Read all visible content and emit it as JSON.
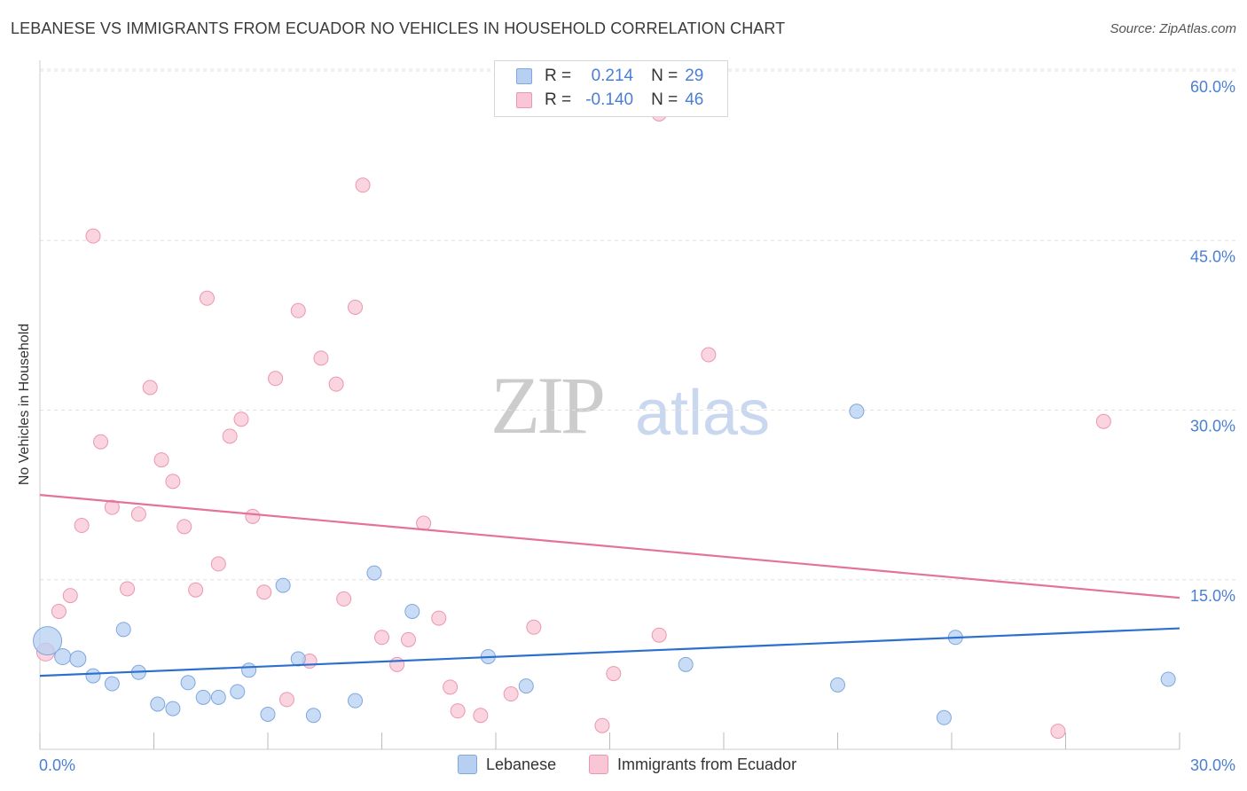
{
  "title": "LEBANESE VS IMMIGRANTS FROM ECUADOR NO VEHICLES IN HOUSEHOLD CORRELATION CHART",
  "source": "Source: ZipAtlas.com",
  "watermark": {
    "zip": "ZIP",
    "atlas": "atlas"
  },
  "colors": {
    "blue_fill": "#b7d0f2",
    "blue_stroke": "#7fa7de",
    "blue_line": "#2d6fcf",
    "pink_fill": "#f8c6d4",
    "pink_stroke": "#eb97b1",
    "pink_line": "#e4729a",
    "axis_text": "#4a7fd4",
    "grid": "#e0e0e0"
  },
  "legend_top": {
    "rows": [
      {
        "r_label": "R =",
        "r_value": "0.214",
        "n_label": "N =",
        "n_value": "29",
        "color": "#b7d0f2",
        "border": "#7fa7de"
      },
      {
        "r_label": "R =",
        "r_value": "-0.140",
        "n_label": "N =",
        "n_value": "46",
        "color": "#f8c6d4",
        "border": "#eb97b1"
      }
    ]
  },
  "legend_bottom": {
    "items": [
      {
        "label": "Lebanese",
        "color": "#b7d0f2",
        "border": "#7fa7de"
      },
      {
        "label": "Immigrants from Ecuador",
        "color": "#f8c6d4",
        "border": "#eb97b1"
      }
    ]
  },
  "chart_data": {
    "type": "scatter",
    "title": "LEBANESE VS IMMIGRANTS FROM ECUADOR NO VEHICLES IN HOUSEHOLD CORRELATION CHART",
    "xlabel": "",
    "ylabel": "No Vehicles in Household",
    "xlim": [
      0,
      30
    ],
    "ylim": [
      0,
      60
    ],
    "x_tick_labels": [
      "0.0%",
      "30.0%"
    ],
    "y_ticks": [
      15,
      30,
      45,
      60
    ],
    "y_tick_labels": [
      "15.0%",
      "30.0%",
      "45.0%",
      "60.0%"
    ],
    "grid": true,
    "legend_position": "top-center",
    "series": [
      {
        "name": "Lebanese",
        "color": "#b7d0f2",
        "points": [
          [
            0.2,
            9.6,
            16
          ],
          [
            0.6,
            8.2,
            9
          ],
          [
            1.0,
            8.0,
            9
          ],
          [
            1.4,
            6.5,
            8
          ],
          [
            1.9,
            5.8,
            8
          ],
          [
            2.2,
            10.6,
            8
          ],
          [
            2.6,
            6.8,
            8
          ],
          [
            3.1,
            4.0,
            8
          ],
          [
            3.5,
            3.6,
            8
          ],
          [
            3.9,
            5.9,
            8
          ],
          [
            4.3,
            4.6,
            8
          ],
          [
            4.7,
            4.6,
            8
          ],
          [
            5.2,
            5.1,
            8
          ],
          [
            5.5,
            7.0,
            8
          ],
          [
            6.0,
            3.1,
            8
          ],
          [
            6.4,
            14.5,
            8
          ],
          [
            6.8,
            8.0,
            8
          ],
          [
            7.2,
            3.0,
            8
          ],
          [
            8.3,
            4.3,
            8
          ],
          [
            8.8,
            15.6,
            8
          ],
          [
            9.8,
            12.2,
            8
          ],
          [
            11.8,
            8.2,
            8
          ],
          [
            12.8,
            5.6,
            8
          ],
          [
            17.0,
            7.5,
            8
          ],
          [
            21.0,
            5.7,
            8
          ],
          [
            21.5,
            29.9,
            8
          ],
          [
            23.8,
            2.8,
            8
          ],
          [
            24.1,
            9.9,
            8
          ],
          [
            29.7,
            6.2,
            8
          ]
        ]
      },
      {
        "name": "Immigrants from Ecuador",
        "color": "#f8c6d4",
        "points": [
          [
            0.15,
            8.6,
            10
          ],
          [
            0.5,
            12.2,
            8
          ],
          [
            0.8,
            13.6,
            8
          ],
          [
            1.1,
            19.8,
            8
          ],
          [
            1.4,
            45.4,
            8
          ],
          [
            1.6,
            27.2,
            8
          ],
          [
            1.9,
            21.4,
            8
          ],
          [
            2.3,
            14.2,
            8
          ],
          [
            2.6,
            20.8,
            8
          ],
          [
            2.9,
            32.0,
            8
          ],
          [
            3.2,
            25.6,
            8
          ],
          [
            3.5,
            23.7,
            8
          ],
          [
            3.8,
            19.7,
            8
          ],
          [
            4.1,
            14.1,
            8
          ],
          [
            4.4,
            39.9,
            8
          ],
          [
            4.7,
            16.4,
            8
          ],
          [
            5.0,
            27.7,
            8
          ],
          [
            5.3,
            29.2,
            8
          ],
          [
            5.6,
            20.6,
            8
          ],
          [
            5.9,
            13.9,
            8
          ],
          [
            6.2,
            32.8,
            8
          ],
          [
            6.5,
            4.4,
            8
          ],
          [
            6.8,
            38.8,
            8
          ],
          [
            7.1,
            7.8,
            8
          ],
          [
            7.4,
            34.6,
            8
          ],
          [
            7.8,
            32.3,
            8
          ],
          [
            8.0,
            13.3,
            8
          ],
          [
            8.3,
            39.1,
            8
          ],
          [
            8.5,
            49.9,
            8
          ],
          [
            9.0,
            9.9,
            8
          ],
          [
            9.4,
            7.5,
            8
          ],
          [
            9.7,
            9.7,
            8
          ],
          [
            10.1,
            20.0,
            8
          ],
          [
            10.5,
            11.6,
            8
          ],
          [
            10.8,
            5.5,
            8
          ],
          [
            11.0,
            3.4,
            8
          ],
          [
            11.6,
            3.0,
            8
          ],
          [
            12.4,
            4.9,
            8
          ],
          [
            13.0,
            10.8,
            8
          ],
          [
            14.8,
            2.1,
            8
          ],
          [
            15.1,
            6.7,
            8
          ],
          [
            16.3,
            10.1,
            8
          ],
          [
            16.3,
            56.2,
            8
          ],
          [
            17.6,
            34.9,
            8
          ],
          [
            26.8,
            1.6,
            8
          ],
          [
            28.0,
            29.0,
            8
          ]
        ]
      }
    ],
    "trend_lines": [
      {
        "series": "Lebanese",
        "color": "#2d6fcf",
        "x": [
          0,
          30
        ],
        "y": [
          6.5,
          10.7
        ]
      },
      {
        "series": "Immigrants from Ecuador",
        "color": "#e4729a",
        "x": [
          0,
          30
        ],
        "y": [
          22.5,
          13.4
        ]
      }
    ]
  }
}
